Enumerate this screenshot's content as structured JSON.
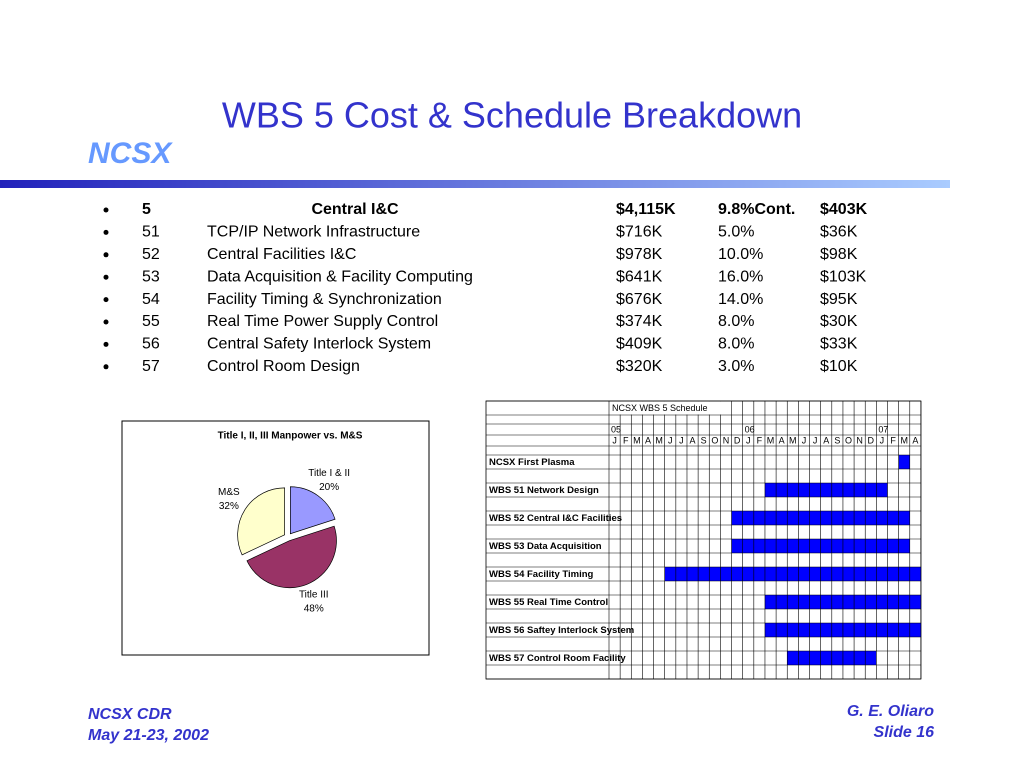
{
  "header": {
    "title": "WBS 5 Cost & Schedule Breakdown",
    "logo": "NCSX"
  },
  "breakdown": {
    "rows": [
      [
        "5",
        "Central I&C",
        "$4,115K",
        "9.8%Cont.",
        "$403K"
      ],
      [
        "51",
        "TCP/IP Network Infrastructure",
        "$716K",
        "5.0%",
        "$36K"
      ],
      [
        "52",
        "Central Facilities I&C",
        "$978K",
        "10.0%",
        "$98K"
      ],
      [
        "53",
        "Data Acquisition & Facility Computing",
        "$641K",
        "16.0%",
        "$103K"
      ],
      [
        "54",
        "Facility Timing & Synchronization",
        "$676K",
        "14.0%",
        "$95K"
      ],
      [
        "55",
        "Real Time Power Supply Control",
        "$374K",
        "8.0%",
        "$30K"
      ],
      [
        "56",
        "Central Safety Interlock System",
        "$409K",
        "8.0%",
        "$33K"
      ],
      [
        "57",
        "Control Room Design",
        "$320K",
        "3.0%",
        "$10K"
      ]
    ]
  },
  "chart_data": [
    {
      "type": "pie",
      "title": "Title I, II, III Manpower vs. M&S",
      "categories": [
        "Title I & II",
        "Title III",
        "M&S"
      ],
      "values": [
        20,
        48,
        32
      ],
      "value_labels": [
        "20%",
        "48%",
        "32%"
      ],
      "colors": [
        "#9999ff",
        "#993366",
        "#ffffcc"
      ]
    },
    {
      "type": "gantt",
      "title": "NCSX WBS 5 Schedule",
      "color": "#0000ff",
      "months": [
        "J",
        "F",
        "M",
        "A",
        "M",
        "J",
        "J",
        "A",
        "S",
        "O",
        "N",
        "D",
        "J",
        "F",
        "M",
        "A",
        "M",
        "J",
        "J",
        "A",
        "S",
        "O",
        "N",
        "D",
        "J",
        "F",
        "M",
        "A"
      ],
      "year_labels": [
        "05",
        null,
        null,
        null,
        null,
        null,
        null,
        null,
        null,
        null,
        null,
        null,
        "06",
        null,
        null,
        null,
        null,
        null,
        null,
        null,
        null,
        null,
        null,
        null,
        "07",
        null,
        null,
        null
      ],
      "tasks": [
        {
          "name": "NCSX First Plasma",
          "start": 26,
          "end": 26
        },
        {
          "name": "WBS 51 Network Design",
          "start": 14,
          "end": 24
        },
        {
          "name": "WBS 52 Central I&C Facilities",
          "start": 11,
          "end": 26
        },
        {
          "name": "WBS 53 Data Acquisition",
          "start": 11,
          "end": 26
        },
        {
          "name": "WBS 54 Facility Timing",
          "start": 5,
          "end": 27
        },
        {
          "name": "WBS 55 Real Time Control",
          "start": 14,
          "end": 27
        },
        {
          "name": "WBS 56 Saftey Interlock System",
          "start": 14,
          "end": 27
        },
        {
          "name": "WBS 57 Control Room Facility",
          "start": 16,
          "end": 23
        }
      ]
    }
  ],
  "footer": {
    "left": [
      "NCSX CDR",
      "May 21-23, 2002"
    ],
    "right": [
      "G. E. Oliaro",
      "Slide 16"
    ]
  }
}
